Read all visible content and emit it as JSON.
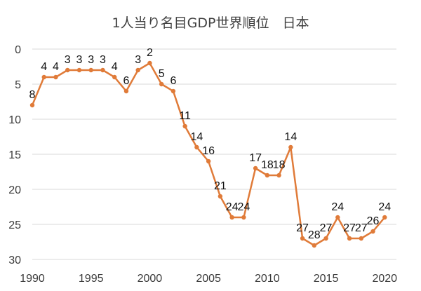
{
  "chart_data": {
    "type": "line",
    "title": "1人当り名目GDP世界順位　日本",
    "xlabel": "",
    "ylabel": "",
    "x": [
      1990,
      1991,
      1992,
      1993,
      1994,
      1995,
      1996,
      1997,
      1998,
      1999,
      2000,
      2001,
      2002,
      2003,
      2004,
      2005,
      2006,
      2007,
      2008,
      2009,
      2010,
      2011,
      2012,
      2013,
      2014,
      2015,
      2016,
      2017,
      2018,
      2019,
      2020
    ],
    "series": [
      {
        "values": [
          8,
          4,
          4,
          3,
          3,
          3,
          3,
          4,
          6,
          3,
          2,
          5,
          6,
          11,
          14,
          16,
          21,
          24,
          24,
          17,
          18,
          18,
          14,
          27,
          28,
          27,
          24,
          27,
          27,
          26,
          24
        ],
        "color": "#e07b39"
      }
    ],
    "xlim": [
      1990,
      2021
    ],
    "ylim": [
      0,
      30
    ],
    "y_reversed": true,
    "x_ticks": [
      1990,
      1995,
      2000,
      2005,
      2010,
      2015,
      2020
    ],
    "y_ticks": [
      0,
      5,
      10,
      15,
      20,
      25,
      30
    ],
    "grid": "horizontal",
    "grid_color": "#d9d9d9",
    "legend": "none",
    "data_labels": true
  }
}
